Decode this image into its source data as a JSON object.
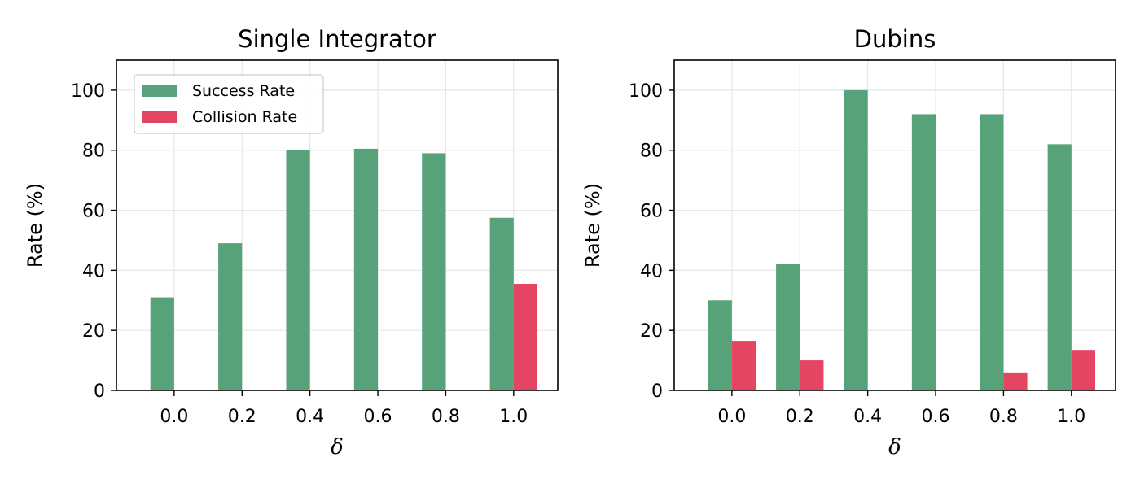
{
  "colors": {
    "success": "#58a27a",
    "collision": "#e44563",
    "grid": "#e6e6e6"
  },
  "chart_data": [
    {
      "type": "bar",
      "title": "Single Integrator",
      "xlabel": "δ",
      "ylabel": "Rate (%)",
      "categories": [
        "0.0",
        "0.2",
        "0.4",
        "0.6",
        "0.8",
        "1.0"
      ],
      "ylim": [
        0,
        110
      ],
      "yticks": [
        "0",
        "20",
        "40",
        "60",
        "80",
        "100"
      ],
      "grid": true,
      "legend": "top-left",
      "series": [
        {
          "name": "Success Rate",
          "values": [
            31,
            49,
            80,
            80.5,
            79,
            57.5
          ]
        },
        {
          "name": "Collision Rate",
          "values": [
            0,
            0,
            0,
            0,
            0,
            35.5
          ]
        }
      ]
    },
    {
      "type": "bar",
      "title": "Dubins",
      "xlabel": "δ",
      "ylabel": "Rate (%)",
      "categories": [
        "0.0",
        "0.2",
        "0.4",
        "0.6",
        "0.8",
        "1.0"
      ],
      "ylim": [
        0,
        110
      ],
      "yticks": [
        "0",
        "20",
        "40",
        "60",
        "80",
        "100"
      ],
      "grid": true,
      "series": [
        {
          "name": "Success Rate",
          "values": [
            30,
            42,
            100,
            92,
            92,
            82
          ]
        },
        {
          "name": "Collision Rate",
          "values": [
            16.5,
            10,
            0,
            0,
            6,
            13.5
          ]
        }
      ]
    }
  ]
}
